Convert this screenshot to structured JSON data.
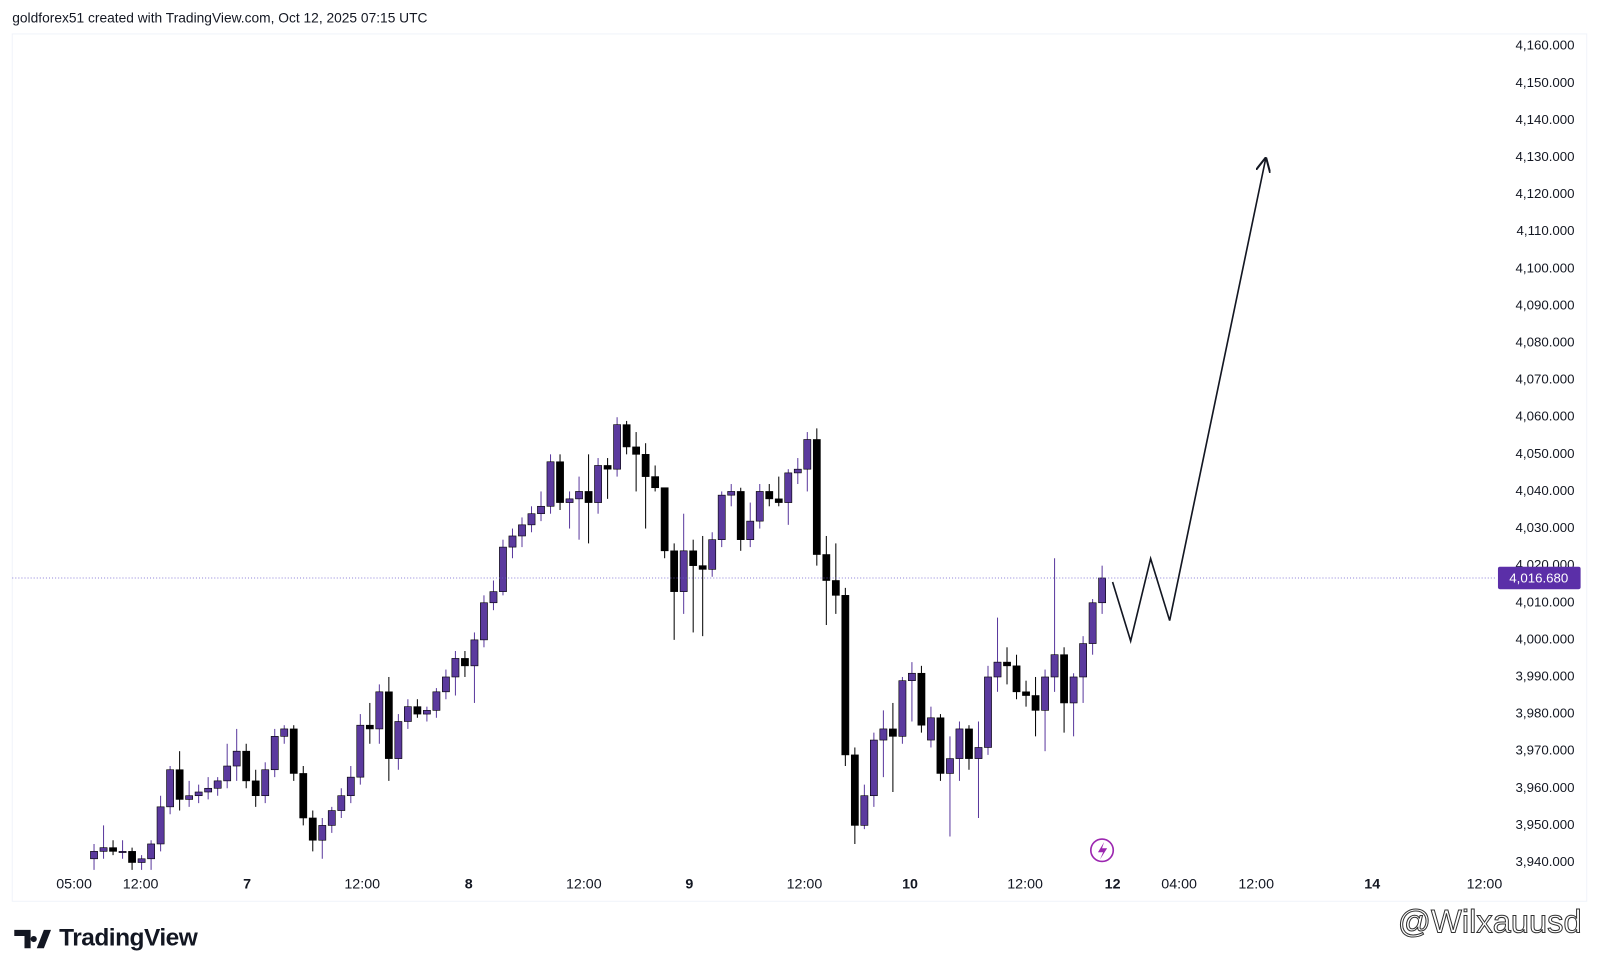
{
  "header": "goldforex51 created with TradingView.com, Oct 12, 2025 07:15 UTC",
  "logo": "TradingView",
  "watermark": "@Wilxauusd",
  "chart_data": {
    "type": "candlestick",
    "up_color": "#5b3a9e",
    "down_color": "#000000",
    "open": [
      3941,
      3943,
      3944,
      3943,
      3943,
      3940,
      3941,
      3945,
      3955,
      3965,
      3957,
      3958,
      3959,
      3960,
      3962,
      3966,
      3970,
      3962,
      3958,
      3965,
      3974,
      3976,
      3964,
      3952,
      3946,
      3950,
      3954,
      3958,
      3963,
      3977,
      3976,
      3986,
      3968,
      3978,
      3982,
      3980,
      3981,
      3986,
      3990,
      3995,
      3993,
      4000,
      4010,
      4013,
      4025,
      4028,
      4031,
      4034,
      4036,
      4048,
      4037,
      4038,
      4040,
      4037,
      4047,
      4046,
      4058,
      4052,
      4050,
      4044,
      4041,
      4024,
      4013,
      4024,
      4020,
      4019,
      4027,
      4039,
      4040,
      4027,
      4032,
      4040,
      4038,
      4037,
      4045,
      4046,
      4054,
      4023,
      4016,
      4012,
      3969,
      3950,
      3958,
      3973,
      3976,
      3974,
      3989,
      3991,
      3973,
      3979,
      3964,
      3968,
      3976,
      3968,
      3971,
      3990,
      3994,
      3993,
      3986,
      3985,
      3981,
      3990,
      3996,
      3983,
      3990,
      3999,
      4010
    ],
    "high": [
      3945,
      3950,
      3946,
      3946,
      3944,
      3942,
      3946,
      3958,
      3966,
      3970,
      3962,
      3961,
      3963,
      3963,
      3972,
      3976,
      3972,
      3965,
      3967,
      3976,
      3977,
      3977,
      3966,
      3954,
      3952,
      3955,
      3960,
      3966,
      3980,
      3983,
      3988,
      3990,
      3980,
      3984,
      3984,
      3982,
      3987,
      3992,
      3997,
      3997,
      4002,
      4012,
      4016,
      4027,
      4030,
      4033,
      4036,
      4040,
      4050,
      4050,
      4040,
      4044,
      4050,
      4049,
      4049,
      4060,
      4059,
      4056,
      4053,
      4047,
      4041,
      4026,
      4034,
      4027,
      4028,
      4029,
      4040,
      4042,
      4041,
      4037,
      4042,
      4042,
      4044,
      4046,
      4049,
      4056,
      4057,
      4028,
      4026,
      4014,
      3971,
      3961,
      3975,
      3981,
      3983,
      3990,
      3994,
      3993,
      3982,
      3980,
      3974,
      3978,
      3977,
      3978,
      3993,
      4006,
      3998,
      3996,
      3989,
      3990,
      3992,
      4022,
      3998,
      3991,
      4001,
      4011,
      4020
    ],
    "low": [
      3938,
      3941,
      3942,
      3941,
      3938,
      3938,
      3938,
      3943,
      3953,
      3954,
      3955,
      3956,
      3957,
      3958,
      3960,
      3962,
      3960,
      3955,
      3956,
      3963,
      3972,
      3962,
      3950,
      3943,
      3941,
      3948,
      3952,
      3956,
      3961,
      3972,
      3972,
      3962,
      3965,
      3976,
      3979,
      3978,
      3979,
      3984,
      3985,
      3990,
      3983,
      3998,
      4008,
      4012,
      4022,
      4025,
      4029,
      4032,
      4034,
      4035,
      4030,
      4027,
      4026,
      4034,
      4038,
      4044,
      4050,
      4040,
      4030,
      4040,
      4022,
      4000,
      4007,
      4002,
      4001,
      4017,
      4025,
      4036,
      4024,
      4025,
      4030,
      4036,
      4036,
      4031,
      4042,
      4040,
      4020,
      4004,
      4007,
      3966,
      3945,
      3949,
      3955,
      3963,
      3959,
      3972,
      3978,
      3975,
      3971,
      3962,
      3947,
      3962,
      3965,
      3952,
      3969,
      3986,
      3988,
      3984,
      3982,
      3974,
      3970,
      3986,
      3975,
      3974,
      3983,
      3996,
      4007
    ],
    "close": [
      3943,
      3944,
      3943,
      3943,
      3940,
      3941,
      3945,
      3955,
      3965,
      3957,
      3958,
      3959,
      3960,
      3962,
      3966,
      3970,
      3962,
      3958,
      3965,
      3974,
      3976,
      3964,
      3952,
      3946,
      3950,
      3954,
      3958,
      3963,
      3977,
      3976,
      3986,
      3968,
      3978,
      3982,
      3980,
      3981,
      3986,
      3990,
      3995,
      3993,
      4000,
      4010,
      4013,
      4025,
      4028,
      4031,
      4034,
      4036,
      4048,
      4037,
      4038,
      4040,
      4037,
      4047,
      4046,
      4058,
      4052,
      4050,
      4044,
      4041,
      4024,
      4013,
      4024,
      4020,
      4019,
      4027,
      4039,
      4040,
      4027,
      4032,
      4040,
      4038,
      4037,
      4045,
      4046,
      4054,
      4023,
      4016,
      4012,
      3969,
      3950,
      3958,
      3973,
      3976,
      3974,
      3989,
      3991,
      3977,
      3979,
      3964,
      3968,
      3976,
      3968,
      3971,
      3990,
      3994,
      3993,
      3986,
      3985,
      3981,
      3990,
      3996,
      3983,
      3990,
      3999,
      4010,
      4016.68
    ],
    "last_price": {
      "value": 4016.68,
      "label": "4,016.680"
    },
    "projection": {
      "x": [
        107.1,
        109.0,
        111.1,
        113.1,
        123.2
      ],
      "y": [
        4015.6,
        3999.7,
        4021.9,
        4005.2,
        4129.7
      ]
    },
    "xlim": [
      -8.6,
      147.3
    ],
    "xticks": [
      {
        "value": -2.1,
        "label": "05:00"
      },
      {
        "value": 4.9,
        "label": "12:00"
      },
      {
        "value": 16.1,
        "label": "7"
      },
      {
        "value": 28.2,
        "label": "12:00"
      },
      {
        "value": 39.4,
        "label": "8"
      },
      {
        "value": 51.5,
        "label": "12:00"
      },
      {
        "value": 62.6,
        "label": "9"
      },
      {
        "value": 74.7,
        "label": "12:00"
      },
      {
        "value": 85.8,
        "label": "10"
      },
      {
        "value": 97.9,
        "label": "12:00"
      },
      {
        "value": 107.1,
        "label": "12"
      },
      {
        "value": 114.1,
        "label": "04:00"
      },
      {
        "value": 122.2,
        "label": "12:00"
      },
      {
        "value": 134.4,
        "label": "14"
      },
      {
        "value": 146.2,
        "label": "12:00"
      }
    ],
    "ylim": [
      3937.25,
      4163.3
    ],
    "yticks": [
      {
        "value": 4160,
        "label": "4,160.000"
      },
      {
        "value": 4150,
        "label": "4,150.000"
      },
      {
        "value": 4140,
        "label": "4,140.000"
      },
      {
        "value": 4130,
        "label": "4,130.000"
      },
      {
        "value": 4120,
        "label": "4,120.000"
      },
      {
        "value": 4110,
        "label": "4,110.000"
      },
      {
        "value": 4100,
        "label": "4,100.000"
      },
      {
        "value": 4090,
        "label": "4,090.000"
      },
      {
        "value": 4080,
        "label": "4,080.000"
      },
      {
        "value": 4070,
        "label": "4,070.000"
      },
      {
        "value": 4060,
        "label": "4,060.000"
      },
      {
        "value": 4050,
        "label": "4,050.000"
      },
      {
        "value": 4040,
        "label": "4,040.000"
      },
      {
        "value": 4030,
        "label": "4,030.000"
      },
      {
        "value": 4020,
        "label": "4,020.000"
      },
      {
        "value": 4010,
        "label": "4,010.000"
      },
      {
        "value": 4000,
        "label": "4,000.000"
      },
      {
        "value": 3990,
        "label": "3,990.000"
      },
      {
        "value": 3980,
        "label": "3,980.000"
      },
      {
        "value": 3970,
        "label": "3,970.000"
      },
      {
        "value": 3960,
        "label": "3,960.000"
      },
      {
        "value": 3950,
        "label": "3,950.000"
      },
      {
        "value": 3940,
        "label": "3,940.000"
      }
    ]
  }
}
